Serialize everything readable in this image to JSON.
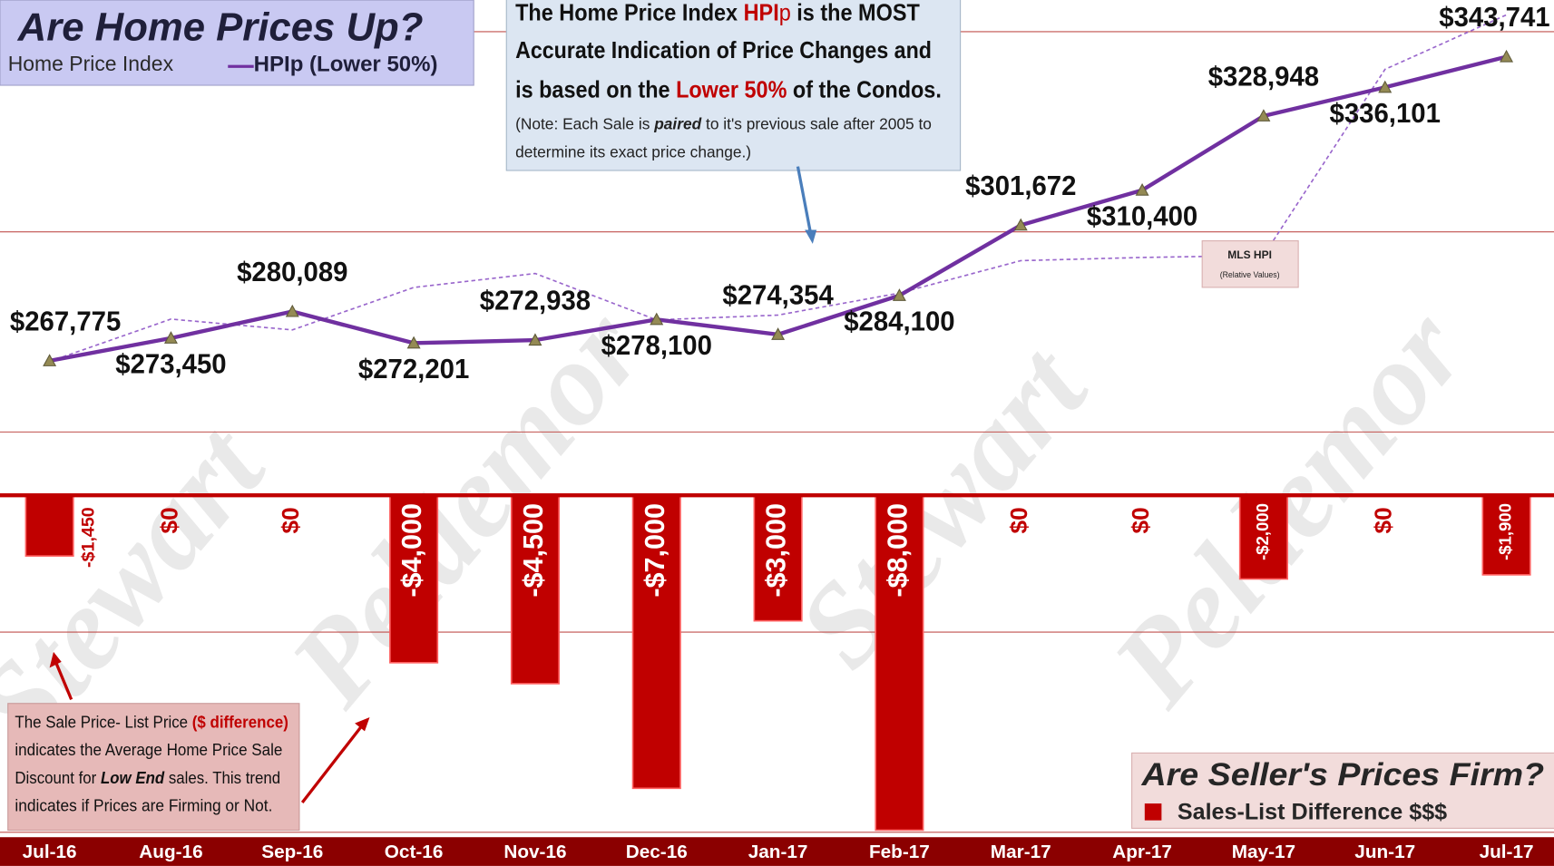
{
  "chart_data": {
    "type": "combo",
    "title": "Are Home Prices Up?",
    "legend_title": "Home Price Index",
    "categories": [
      "Jul-16",
      "Aug-16",
      "Sep-16",
      "Oct-16",
      "Nov-16",
      "Dec-16",
      "Jan-17",
      "Feb-17",
      "Mar-17",
      "Apr-17",
      "May-17",
      "Jun-17",
      "Jul-17"
    ],
    "ylim": [
      150000,
      357900
    ],
    "yticks": [
      150000,
      200000,
      250000,
      300000,
      350000
    ],
    "y2lim": [
      -8050,
      11830
    ],
    "y2ticks": [
      0
    ],
    "grid": true,
    "series": [
      {
        "name": "HPIp (Lower 50%)",
        "type": "line",
        "color": "#7030a0",
        "values": [
          267775,
          273450,
          280089,
          272201,
          272938,
          278100,
          274354,
          284100,
          301672,
          310400,
          328948,
          336101,
          343741
        ],
        "value_labels": [
          "$267,775",
          "$273,450",
          "$280,089",
          "$272,201",
          "$272,938",
          "$278,100",
          "$274,354",
          "$284,100",
          "$301,672",
          "$310,400",
          "$328,948",
          "$336,101",
          "$343,741"
        ]
      },
      {
        "name": "MLS HPI",
        "note": "(Relative Values)",
        "type": "dashed-line",
        "color": "#9966cc",
        "values": [
          267600,
          278200,
          275500,
          286100,
          289600,
          278000,
          279200,
          284700,
          292800,
          293600,
          294100,
          340600,
          354200
        ]
      },
      {
        "name": "Sales-List Difference $$$",
        "type": "bar",
        "axis": "y2",
        "color": "#c00000",
        "values": [
          -1450,
          0,
          0,
          -4000,
          -4500,
          -7000,
          -3000,
          -8000,
          0,
          0,
          -2000,
          0,
          -1900
        ],
        "value_labels": [
          "-$1,450",
          "$0",
          "$0",
          "-$4,000",
          "-$4,500",
          "-$7,000",
          "-$3,000",
          "-$8,000",
          "$0",
          "$0",
          "-$2,000",
          "$0",
          "-$1,900"
        ]
      }
    ],
    "bar_panel_title": "Are Seller's Prices Firm?",
    "top_note": [
      [
        "The Home Price Index ",
        "HPI",
        "p",
        " is the MOST"
      ],
      [
        "Accurate Indication of Price Changes and"
      ],
      [
        "is based on the ",
        "Lower 50%",
        " of the Condos."
      ],
      [
        "(Note: Each Sale is ",
        "paired",
        " to it's previous sale after 2005  to"
      ],
      [
        "determine its exact price change.)"
      ]
    ],
    "bottom_note": [
      [
        "The  Sale Price- List Price ",
        "($ difference)"
      ],
      [
        "indicates the Average Home Price Sale"
      ],
      [
        "Discount for ",
        "Low End",
        " sales. This trend"
      ],
      [
        "indicates if Prices are Firming or Not."
      ]
    ],
    "watermarks": [
      "Stewart",
      "Peldemor"
    ]
  }
}
